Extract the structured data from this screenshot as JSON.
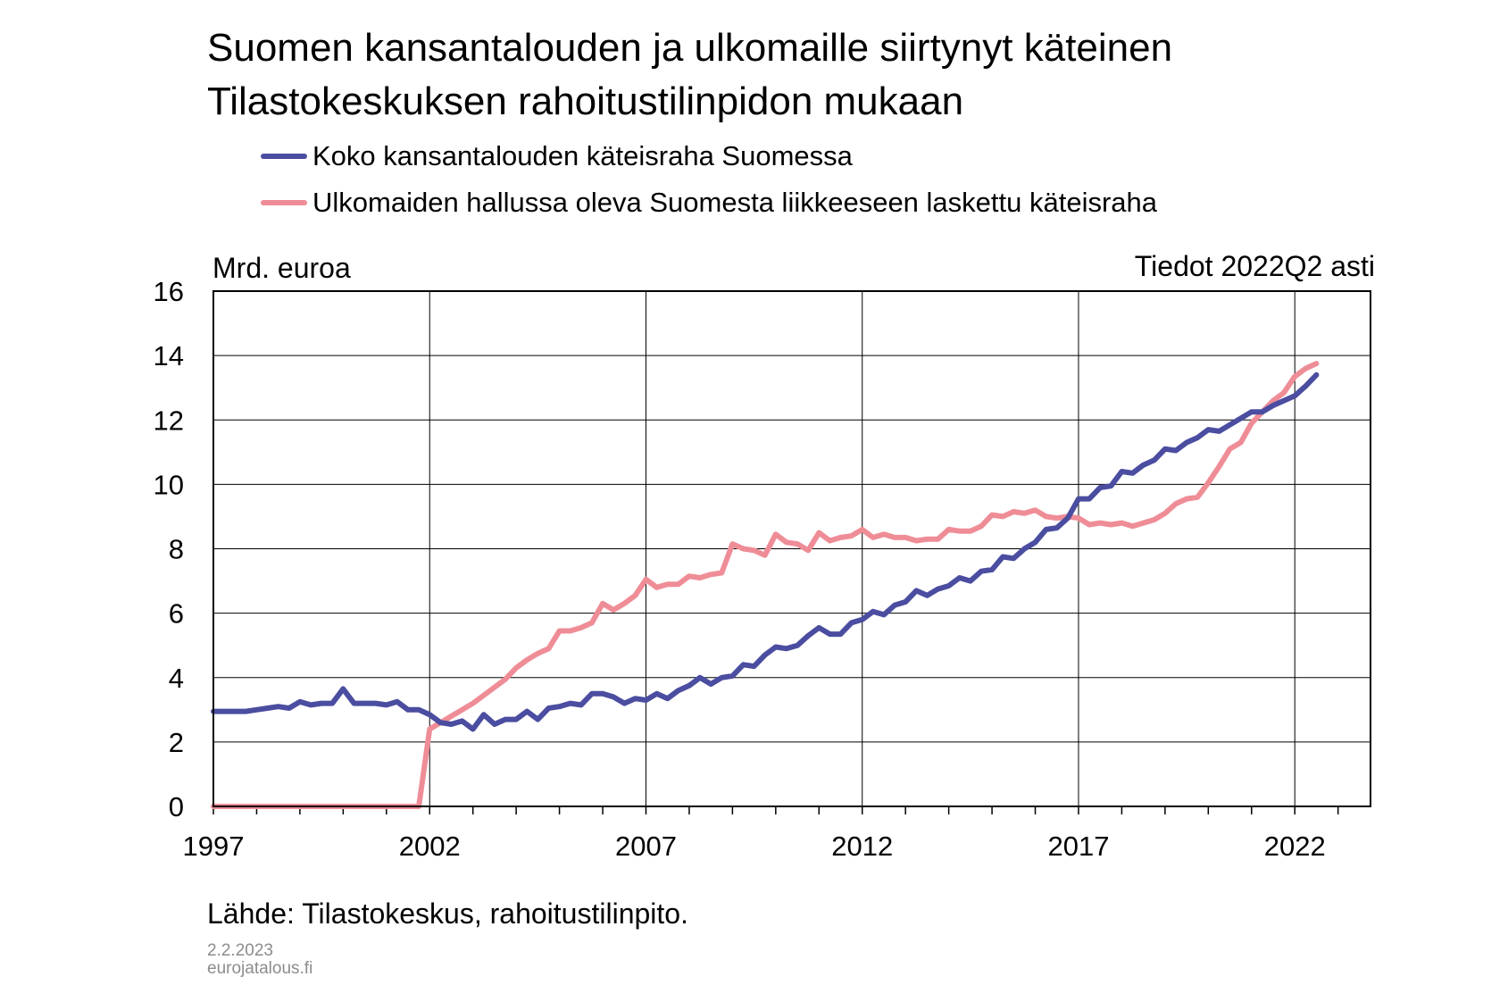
{
  "title_line1": "Suomen kansantalouden ja ulkomaille siirtynyt käteinen",
  "title_line2": "Tilastokeskuksen rahoitustilinpidon mukaan",
  "y_unit": "Mrd. euroa",
  "data_until": "Tiedot 2022Q2 asti",
  "source": "Lähde: Tilastokeskus, rahoitustilinpito.",
  "date": "2.2.2023",
  "site": "eurojatalous.fi",
  "chart_data": {
    "type": "line",
    "title": "Suomen kansantalouden ja ulkomaille siirtynyt käteinen",
    "subtitle": "Tilastokeskuksen rahoitustilinpidon mukaan",
    "ylabel": "Mrd. euroa",
    "ylim": [
      0,
      16
    ],
    "yticks": [
      0,
      2,
      4,
      6,
      8,
      10,
      12,
      14,
      16
    ],
    "xlim": [
      1997.0,
      2023.75
    ],
    "xticks": [
      1997,
      2002,
      2007,
      2012,
      2017,
      2022
    ],
    "xtick_labels": [
      "1997",
      "2002",
      "2007",
      "2012",
      "2017",
      "2022"
    ],
    "grid": true,
    "legend": "top",
    "series": [
      {
        "name": "Koko kansantalouden käteisraha Suomessa",
        "color": "#4b4da0",
        "start": 1997.0,
        "step": 0.25,
        "values": [
          2.95,
          2.95,
          2.95,
          2.95,
          3.0,
          3.05,
          3.1,
          3.05,
          3.25,
          3.15,
          3.2,
          3.2,
          3.65,
          3.2,
          3.2,
          3.2,
          3.15,
          3.25,
          3.0,
          3.0,
          2.85,
          2.6,
          2.55,
          2.65,
          2.4,
          2.85,
          2.55,
          2.7,
          2.7,
          2.95,
          2.7,
          3.05,
          3.1,
          3.2,
          3.15,
          3.5,
          3.5,
          3.4,
          3.2,
          3.35,
          3.3,
          3.5,
          3.35,
          3.6,
          3.75,
          4.0,
          3.8,
          4.0,
          4.05,
          4.4,
          4.35,
          4.7,
          4.95,
          4.9,
          5.0,
          5.3,
          5.55,
          5.35,
          5.35,
          5.7,
          5.8,
          6.05,
          5.95,
          6.25,
          6.35,
          6.7,
          6.55,
          6.75,
          6.85,
          7.1,
          7.0,
          7.3,
          7.35,
          7.75,
          7.7,
          8.0,
          8.2,
          8.6,
          8.65,
          8.95,
          9.55,
          9.55,
          9.9,
          9.95,
          10.4,
          10.35,
          10.6,
          10.75,
          11.1,
          11.05,
          11.3,
          11.45,
          11.7,
          11.65,
          11.85,
          12.05,
          12.25,
          12.25,
          12.45,
          12.6,
          12.75,
          13.05,
          13.4
        ]
      },
      {
        "name": "Ulkomaiden hallussa oleva Suomesta liikkeeseen laskettu käteisraha",
        "color": "#ef8d97",
        "start": 1997.0,
        "step": 0.25,
        "values": [
          0,
          0,
          0,
          0,
          0,
          0,
          0,
          0,
          0,
          0,
          0,
          0,
          0,
          0,
          0,
          0,
          0,
          0,
          0,
          0.0,
          2.4,
          2.6,
          2.8,
          3.0,
          3.2,
          3.45,
          3.7,
          3.95,
          4.3,
          4.55,
          4.75,
          4.9,
          5.45,
          5.45,
          5.55,
          5.7,
          6.3,
          6.1,
          6.3,
          6.55,
          7.05,
          6.8,
          6.9,
          6.9,
          7.15,
          7.1,
          7.2,
          7.25,
          8.15,
          8.0,
          7.95,
          7.8,
          8.45,
          8.2,
          8.15,
          7.95,
          8.5,
          8.25,
          8.35,
          8.4,
          8.6,
          8.35,
          8.45,
          8.35,
          8.35,
          8.25,
          8.3,
          8.3,
          8.6,
          8.55,
          8.55,
          8.7,
          9.05,
          9.0,
          9.15,
          9.1,
          9.2,
          9.0,
          8.95,
          9.0,
          8.95,
          8.75,
          8.8,
          8.75,
          8.8,
          8.7,
          8.8,
          8.9,
          9.1,
          9.4,
          9.55,
          9.6,
          10.05,
          10.55,
          11.1,
          11.3,
          11.9,
          12.25,
          12.6,
          12.85,
          13.35,
          13.6,
          13.75
        ]
      }
    ]
  }
}
